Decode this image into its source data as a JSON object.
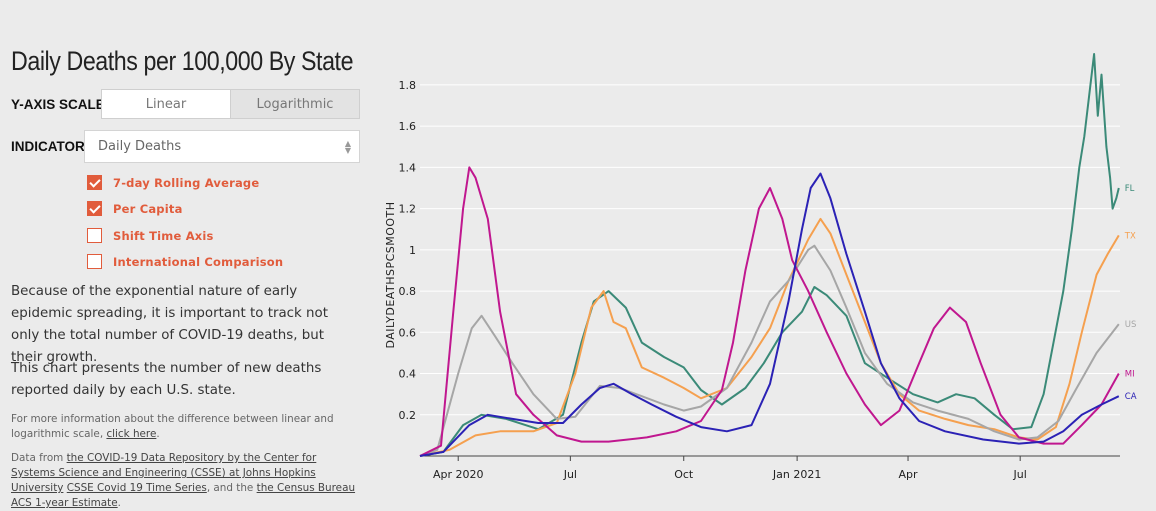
{
  "title": "Daily Deaths per 100,000 By State",
  "yscale": {
    "label": "Y-AXIS SCALE",
    "options": [
      "Linear",
      "Logarithmic"
    ],
    "selected": "Linear"
  },
  "indicator": {
    "label": "INDICATOR",
    "value": "Daily Deaths"
  },
  "checkboxes": [
    {
      "label": "7-day Rolling Average",
      "checked": true
    },
    {
      "label": "Per Capita",
      "checked": true
    },
    {
      "label": "Shift Time Axis",
      "checked": false
    },
    {
      "label": "International Comparison",
      "checked": false
    }
  ],
  "paragraph1": "Because of the exponential nature of early epidemic spreading, it is important to track not only the total number of COVID-19 deaths, but their growth.",
  "paragraph2": "This chart presents the number of new deaths reported daily by each U.S. state.",
  "note": {
    "text": "For more information about the difference between linear and logarithmic scale, ",
    "link": "click here",
    "end": "."
  },
  "source": {
    "prefix": "Data from ",
    "link1": "the COVID-19 Data Repository by the Center for Systems Science and Engineering (CSSE) at Johns Hopkins University",
    "mid1": " ",
    "link2": "CSSE Covid 19 Time Series",
    "mid2": ", and the ",
    "link3": "the Census Bureau",
    "mid3": " ",
    "link4": "ACS 1-year Estimate",
    "end": "."
  },
  "colors": {
    "accent": "#e15c3c",
    "FL": "#3b8a78",
    "TX": "#f5a04f",
    "US": "#a6a6a6",
    "MI": "#c0178f",
    "CA": "#2b22b5"
  },
  "chart_data": {
    "type": "line",
    "ylabel": "DAILYDEATHSPCSMOOTH",
    "ylim": [
      0,
      1.95
    ],
    "yticks": [
      0.2,
      0.4,
      0.6,
      0.8,
      1,
      1.2,
      1.4,
      1.6,
      1.8
    ],
    "ytick_labels": [
      "0.2",
      "0.4",
      "0.6",
      "0.8",
      "1",
      "1.2",
      "1.4",
      "1.6",
      "1.8"
    ],
    "x_start": "2020-03-01",
    "x_end": "2021-09-20",
    "xticks": [
      {
        "date": "2020-04-01",
        "label": "Apr 2020"
      },
      {
        "date": "2020-07-01",
        "label": "Jul"
      },
      {
        "date": "2020-10-01",
        "label": "Oct"
      },
      {
        "date": "2021-01-01",
        "label": "Jan 2021"
      },
      {
        "date": "2021-04-01",
        "label": "Apr"
      },
      {
        "date": "2021-07-01",
        "label": "Jul"
      }
    ],
    "grid": "horizontal",
    "series": [
      {
        "name": "FL",
        "points": [
          [
            "2020-03-01",
            0
          ],
          [
            "2020-03-20",
            0.02
          ],
          [
            "2020-04-05",
            0.15
          ],
          [
            "2020-04-20",
            0.2
          ],
          [
            "2020-05-10",
            0.18
          ],
          [
            "2020-06-05",
            0.13
          ],
          [
            "2020-06-25",
            0.2
          ],
          [
            "2020-07-10",
            0.55
          ],
          [
            "2020-07-20",
            0.75
          ],
          [
            "2020-08-01",
            0.8
          ],
          [
            "2020-08-15",
            0.72
          ],
          [
            "2020-08-28",
            0.55
          ],
          [
            "2020-09-15",
            0.48
          ],
          [
            "2020-10-01",
            0.43
          ],
          [
            "2020-10-15",
            0.32
          ],
          [
            "2020-11-01",
            0.25
          ],
          [
            "2020-11-20",
            0.33
          ],
          [
            "2020-12-05",
            0.45
          ],
          [
            "2020-12-20",
            0.6
          ],
          [
            "2021-01-05",
            0.7
          ],
          [
            "2021-01-15",
            0.82
          ],
          [
            "2021-01-25",
            0.78
          ],
          [
            "2021-02-10",
            0.68
          ],
          [
            "2021-02-25",
            0.45
          ],
          [
            "2021-03-15",
            0.38
          ],
          [
            "2021-04-05",
            0.3
          ],
          [
            "2021-04-25",
            0.26
          ],
          [
            "2021-05-10",
            0.3
          ],
          [
            "2021-05-25",
            0.28
          ],
          [
            "2021-06-10",
            0.2
          ],
          [
            "2021-06-25",
            0.13
          ],
          [
            "2021-07-10",
            0.14
          ],
          [
            "2021-07-20",
            0.3
          ],
          [
            "2021-07-28",
            0.55
          ],
          [
            "2021-08-05",
            0.8
          ],
          [
            "2021-08-12",
            1.1
          ],
          [
            "2021-08-18",
            1.4
          ],
          [
            "2021-08-22",
            1.55
          ],
          [
            "2021-08-26",
            1.75
          ],
          [
            "2021-08-30",
            1.95
          ],
          [
            "2021-09-02",
            1.65
          ],
          [
            "2021-09-05",
            1.85
          ],
          [
            "2021-09-09",
            1.5
          ],
          [
            "2021-09-12",
            1.35
          ],
          [
            "2021-09-14",
            1.2
          ],
          [
            "2021-09-17",
            1.25
          ],
          [
            "2021-09-19",
            1.3
          ]
        ]
      },
      {
        "name": "TX",
        "points": [
          [
            "2020-03-01",
            0
          ],
          [
            "2020-03-25",
            0.03
          ],
          [
            "2020-04-15",
            0.1
          ],
          [
            "2020-05-05",
            0.12
          ],
          [
            "2020-06-01",
            0.12
          ],
          [
            "2020-06-20",
            0.16
          ],
          [
            "2020-07-05",
            0.4
          ],
          [
            "2020-07-18",
            0.72
          ],
          [
            "2020-07-28",
            0.8
          ],
          [
            "2020-08-05",
            0.65
          ],
          [
            "2020-08-15",
            0.62
          ],
          [
            "2020-08-28",
            0.43
          ],
          [
            "2020-09-15",
            0.38
          ],
          [
            "2020-10-01",
            0.33
          ],
          [
            "2020-10-15",
            0.28
          ],
          [
            "2020-11-05",
            0.33
          ],
          [
            "2020-11-25",
            0.48
          ],
          [
            "2020-12-10",
            0.62
          ],
          [
            "2020-12-25",
            0.85
          ],
          [
            "2021-01-10",
            1.05
          ],
          [
            "2021-01-20",
            1.15
          ],
          [
            "2021-01-28",
            1.08
          ],
          [
            "2021-02-10",
            0.88
          ],
          [
            "2021-02-25",
            0.65
          ],
          [
            "2021-03-10",
            0.45
          ],
          [
            "2021-03-25",
            0.3
          ],
          [
            "2021-04-10",
            0.22
          ],
          [
            "2021-05-01",
            0.18
          ],
          [
            "2021-05-20",
            0.15
          ],
          [
            "2021-06-10",
            0.13
          ],
          [
            "2021-06-30",
            0.09
          ],
          [
            "2021-07-15",
            0.08
          ],
          [
            "2021-07-30",
            0.14
          ],
          [
            "2021-08-10",
            0.35
          ],
          [
            "2021-08-20",
            0.6
          ],
          [
            "2021-09-01",
            0.88
          ],
          [
            "2021-09-10",
            0.98
          ],
          [
            "2021-09-19",
            1.07
          ]
        ]
      },
      {
        "name": "US",
        "points": [
          [
            "2020-03-01",
            0
          ],
          [
            "2020-03-15",
            0.03
          ],
          [
            "2020-04-01",
            0.4
          ],
          [
            "2020-04-12",
            0.62
          ],
          [
            "2020-04-20",
            0.68
          ],
          [
            "2020-05-01",
            0.58
          ],
          [
            "2020-05-15",
            0.45
          ],
          [
            "2020-06-01",
            0.3
          ],
          [
            "2020-06-20",
            0.18
          ],
          [
            "2020-07-05",
            0.19
          ],
          [
            "2020-07-25",
            0.34
          ],
          [
            "2020-08-10",
            0.33
          ],
          [
            "2020-08-28",
            0.29
          ],
          [
            "2020-09-15",
            0.25
          ],
          [
            "2020-10-01",
            0.22
          ],
          [
            "2020-10-15",
            0.24
          ],
          [
            "2020-11-05",
            0.33
          ],
          [
            "2020-11-25",
            0.55
          ],
          [
            "2020-12-10",
            0.75
          ],
          [
            "2020-12-25",
            0.85
          ],
          [
            "2021-01-10",
            1.0
          ],
          [
            "2021-01-15",
            1.02
          ],
          [
            "2021-01-28",
            0.9
          ],
          [
            "2021-02-10",
            0.72
          ],
          [
            "2021-02-25",
            0.5
          ],
          [
            "2021-03-15",
            0.35
          ],
          [
            "2021-04-05",
            0.26
          ],
          [
            "2021-04-25",
            0.22
          ],
          [
            "2021-05-20",
            0.18
          ],
          [
            "2021-06-10",
            0.12
          ],
          [
            "2021-06-30",
            0.08
          ],
          [
            "2021-07-15",
            0.09
          ],
          [
            "2021-08-01",
            0.17
          ],
          [
            "2021-08-15",
            0.32
          ],
          [
            "2021-09-01",
            0.5
          ],
          [
            "2021-09-19",
            0.64
          ]
        ]
      },
      {
        "name": "MI",
        "points": [
          [
            "2020-03-01",
            0
          ],
          [
            "2020-03-18",
            0.05
          ],
          [
            "2020-03-28",
            0.7
          ],
          [
            "2020-04-05",
            1.2
          ],
          [
            "2020-04-10",
            1.4
          ],
          [
            "2020-04-15",
            1.35
          ],
          [
            "2020-04-25",
            1.15
          ],
          [
            "2020-05-05",
            0.7
          ],
          [
            "2020-05-18",
            0.3
          ],
          [
            "2020-06-01",
            0.2
          ],
          [
            "2020-06-20",
            0.1
          ],
          [
            "2020-07-10",
            0.07
          ],
          [
            "2020-08-01",
            0.07
          ],
          [
            "2020-09-01",
            0.09
          ],
          [
            "2020-09-25",
            0.12
          ],
          [
            "2020-10-15",
            0.17
          ],
          [
            "2020-11-01",
            0.32
          ],
          [
            "2020-11-10",
            0.55
          ],
          [
            "2020-11-20",
            0.9
          ],
          [
            "2020-12-01",
            1.2
          ],
          [
            "2020-12-10",
            1.3
          ],
          [
            "2020-12-20",
            1.15
          ],
          [
            "2020-12-28",
            0.95
          ],
          [
            "2021-01-10",
            0.8
          ],
          [
            "2021-01-25",
            0.6
          ],
          [
            "2021-02-10",
            0.4
          ],
          [
            "2021-02-25",
            0.25
          ],
          [
            "2021-03-10",
            0.15
          ],
          [
            "2021-03-25",
            0.22
          ],
          [
            "2021-04-10",
            0.45
          ],
          [
            "2021-04-22",
            0.62
          ],
          [
            "2021-05-05",
            0.72
          ],
          [
            "2021-05-18",
            0.65
          ],
          [
            "2021-05-30",
            0.45
          ],
          [
            "2021-06-15",
            0.2
          ],
          [
            "2021-06-30",
            0.09
          ],
          [
            "2021-07-20",
            0.06
          ],
          [
            "2021-08-05",
            0.06
          ],
          [
            "2021-08-20",
            0.15
          ],
          [
            "2021-09-05",
            0.25
          ],
          [
            "2021-09-19",
            0.4
          ]
        ]
      },
      {
        "name": "CA",
        "points": [
          [
            "2020-03-01",
            0
          ],
          [
            "2020-03-20",
            0.02
          ],
          [
            "2020-04-10",
            0.15
          ],
          [
            "2020-04-25",
            0.2
          ],
          [
            "2020-05-15",
            0.18
          ],
          [
            "2020-06-05",
            0.16
          ],
          [
            "2020-06-25",
            0.16
          ],
          [
            "2020-07-10",
            0.25
          ],
          [
            "2020-07-25",
            0.33
          ],
          [
            "2020-08-05",
            0.35
          ],
          [
            "2020-08-20",
            0.3
          ],
          [
            "2020-09-05",
            0.25
          ],
          [
            "2020-09-25",
            0.19
          ],
          [
            "2020-10-15",
            0.14
          ],
          [
            "2020-11-05",
            0.12
          ],
          [
            "2020-11-25",
            0.15
          ],
          [
            "2020-12-10",
            0.35
          ],
          [
            "2020-12-25",
            0.75
          ],
          [
            "2021-01-05",
            1.1
          ],
          [
            "2021-01-12",
            1.3
          ],
          [
            "2021-01-20",
            1.37
          ],
          [
            "2021-01-28",
            1.25
          ],
          [
            "2021-02-10",
            0.98
          ],
          [
            "2021-02-25",
            0.7
          ],
          [
            "2021-03-10",
            0.45
          ],
          [
            "2021-03-25",
            0.28
          ],
          [
            "2021-04-10",
            0.17
          ],
          [
            "2021-05-01",
            0.12
          ],
          [
            "2021-06-01",
            0.08
          ],
          [
            "2021-06-30",
            0.06
          ],
          [
            "2021-07-20",
            0.07
          ],
          [
            "2021-08-05",
            0.12
          ],
          [
            "2021-08-20",
            0.2
          ],
          [
            "2021-09-05",
            0.25
          ],
          [
            "2021-09-19",
            0.29
          ]
        ]
      }
    ]
  }
}
